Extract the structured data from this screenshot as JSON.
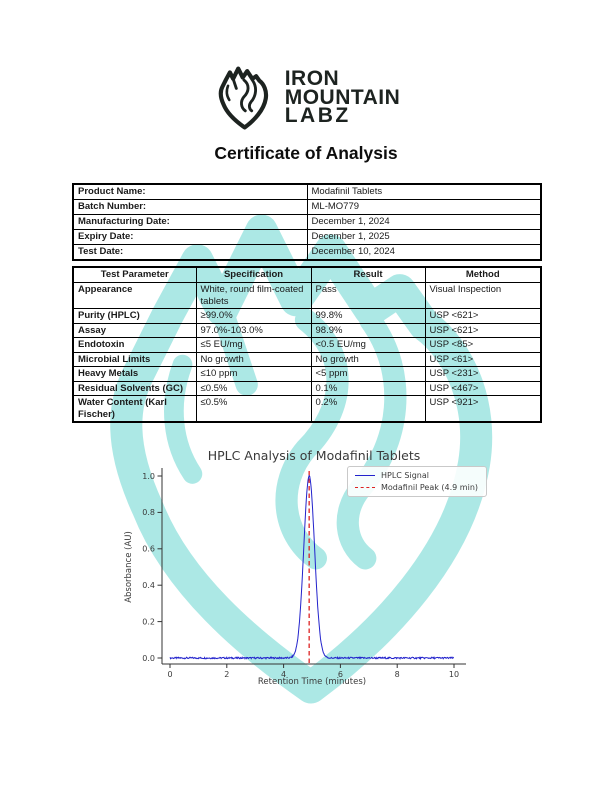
{
  "document": {
    "title": "Certificate of Analysis"
  },
  "brand": {
    "name_line1": "IRON",
    "name_line2": "MOUNTAIN",
    "name_line3": "LABZ",
    "logo_icon": "mountain-shield-fist",
    "logo_color": "#1d2320",
    "watermark_color": "#33c7bf"
  },
  "product_info": {
    "rows": [
      {
        "label": "Product Name:",
        "value": "Modafinil Tablets"
      },
      {
        "label": "Batch Number:",
        "value": "ML-MO779"
      },
      {
        "label": "Manufacturing Date:",
        "value": "December 1, 2024"
      },
      {
        "label": "Expiry Date:",
        "value": "December 1, 2025"
      },
      {
        "label": "Test Date:",
        "value": "December 10, 2024"
      }
    ]
  },
  "test_results": {
    "headers": [
      "Test Parameter",
      "Specification",
      "Result",
      "Method"
    ],
    "rows": [
      [
        "Appearance",
        "White, round film-coated tablets",
        "Pass",
        "Visual Inspection"
      ],
      [
        "Purity (HPLC)",
        "≥99.0%",
        "99.8%",
        "USP <621>"
      ],
      [
        "Assay",
        "97.0%-103.0%",
        "98.9%",
        "USP <621>"
      ],
      [
        "Endotoxin",
        "≤5 EU/mg",
        "<0.5 EU/mg",
        "USP <85>"
      ],
      [
        "Microbial Limits",
        "No growth",
        "No growth",
        "USP <61>"
      ],
      [
        "Heavy Metals",
        "≤10 ppm",
        "<5 ppm",
        "USP <231>"
      ],
      [
        "Residual Solvents (GC)",
        "≤0.5%",
        "0.1%",
        "USP <467>"
      ],
      [
        "Water Content (Karl Fischer)",
        "≤0.5%",
        "0.2%",
        "USP <921>"
      ]
    ]
  },
  "chart_data": {
    "type": "line",
    "title": "HPLC Analysis of Modafinil Tablets",
    "xlabel": "Retention Time (minutes)",
    "ylabel": "Absorbance (AU)",
    "xlim": [
      0,
      10
    ],
    "ylim": [
      0,
      1.0
    ],
    "xticks": [
      0,
      2,
      4,
      6,
      8,
      10
    ],
    "yticks": [
      0.0,
      0.2,
      0.4,
      0.6,
      0.8,
      1.0
    ],
    "grid": false,
    "legend_position": "upper right",
    "series": [
      {
        "name": "HPLC Signal",
        "kind": "signal",
        "color": "#2222cc",
        "style": "solid",
        "baseline_au": 0.0,
        "noise_au": 0.0045,
        "peak_center_min": 4.9,
        "peak_height_au": 1.0,
        "peak_sigma_min": 0.19
      },
      {
        "name": "Modafinil Peak (4.9 min)",
        "kind": "vline",
        "color": "#dd2222",
        "style": "dashed",
        "x": 4.9
      }
    ]
  }
}
